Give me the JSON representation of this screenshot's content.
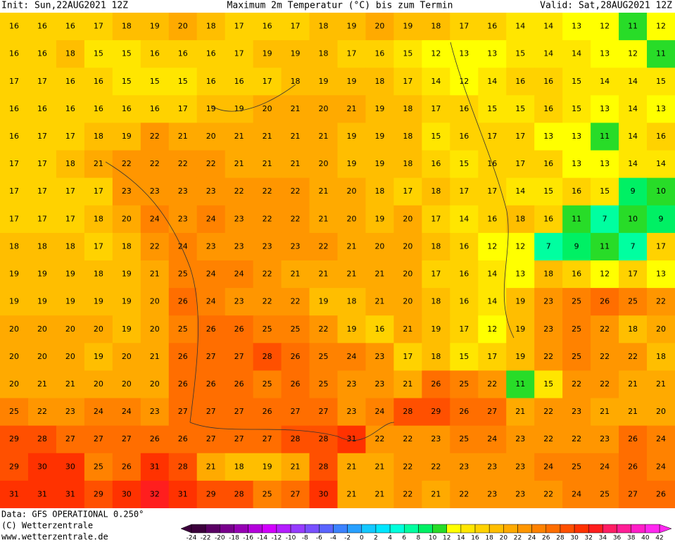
{
  "header": {
    "init": "Init: Sun,22AUG2021 12Z",
    "title": "Maximum 2m Temperatur (°C) bis zum Termin",
    "valid": "Valid: Sat,28AUG2021 12Z"
  },
  "footer": {
    "source": "Data: GFS OPERATIONAL 0.250°",
    "copyright": "(C) Wetterzentrale",
    "url": "www.wetterzentrale.de"
  },
  "grid": {
    "rows": [
      [
        16,
        16,
        16,
        17,
        18,
        19,
        20,
        18,
        17,
        16,
        17,
        18,
        19,
        20,
        19,
        18,
        17,
        16,
        14,
        14,
        13,
        12,
        11,
        12
      ],
      [
        16,
        16,
        18,
        15,
        15,
        16,
        16,
        16,
        17,
        19,
        19,
        18,
        17,
        16,
        15,
        12,
        13,
        13,
        15,
        14,
        14,
        13,
        12,
        11
      ],
      [
        17,
        17,
        16,
        16,
        15,
        15,
        15,
        16,
        16,
        17,
        18,
        19,
        19,
        18,
        17,
        14,
        12,
        14,
        16,
        16,
        15,
        14,
        14,
        15
      ],
      [
        16,
        16,
        16,
        16,
        16,
        16,
        17,
        19,
        19,
        20,
        21,
        20,
        21,
        19,
        18,
        17,
        16,
        15,
        15,
        16,
        15,
        13,
        14,
        13
      ],
      [
        16,
        17,
        17,
        18,
        19,
        22,
        21,
        20,
        21,
        21,
        21,
        21,
        19,
        19,
        18,
        15,
        16,
        17,
        17,
        13,
        13,
        11,
        14,
        16
      ],
      [
        17,
        17,
        18,
        21,
        22,
        22,
        22,
        22,
        21,
        21,
        21,
        20,
        19,
        19,
        18,
        16,
        15,
        16,
        17,
        16,
        13,
        13,
        14,
        14
      ],
      [
        17,
        17,
        17,
        17,
        23,
        23,
        23,
        23,
        22,
        22,
        22,
        21,
        20,
        18,
        17,
        18,
        17,
        17,
        14,
        15,
        16,
        15,
        9,
        10
      ],
      [
        17,
        17,
        17,
        18,
        20,
        24,
        23,
        24,
        23,
        22,
        22,
        21,
        20,
        19,
        20,
        17,
        14,
        16,
        18,
        16,
        11,
        7,
        10,
        9
      ],
      [
        18,
        18,
        18,
        17,
        18,
        22,
        24,
        23,
        23,
        23,
        23,
        22,
        21,
        20,
        20,
        18,
        16,
        12,
        12,
        7,
        9,
        11,
        7,
        17
      ],
      [
        19,
        19,
        19,
        18,
        19,
        21,
        25,
        24,
        24,
        22,
        21,
        21,
        21,
        21,
        20,
        17,
        16,
        14,
        13,
        18,
        16,
        12,
        17,
        13
      ],
      [
        19,
        19,
        19,
        19,
        19,
        20,
        26,
        24,
        23,
        22,
        22,
        19,
        18,
        21,
        20,
        18,
        16,
        14,
        19,
        23,
        25,
        26,
        25,
        22
      ],
      [
        20,
        20,
        20,
        20,
        19,
        20,
        25,
        26,
        26,
        25,
        25,
        22,
        19,
        16,
        21,
        19,
        17,
        12,
        19,
        23,
        25,
        22,
        18,
        20
      ],
      [
        20,
        20,
        20,
        19,
        20,
        21,
        26,
        27,
        27,
        28,
        26,
        25,
        24,
        23,
        17,
        18,
        15,
        17,
        19,
        22,
        25,
        22,
        22,
        18
      ],
      [
        20,
        21,
        21,
        20,
        20,
        20,
        26,
        26,
        26,
        25,
        26,
        25,
        23,
        23,
        21,
        26,
        25,
        22,
        11,
        15,
        22,
        22,
        21,
        21
      ],
      [
        25,
        22,
        23,
        24,
        24,
        23,
        27,
        27,
        27,
        26,
        27,
        27,
        23,
        24,
        28,
        29,
        26,
        27,
        21,
        22,
        23,
        21,
        21,
        20
      ],
      [
        29,
        28,
        27,
        27,
        27,
        26,
        26,
        27,
        27,
        27,
        28,
        28,
        31,
        22,
        22,
        23,
        25,
        24,
        23,
        22,
        22,
        23,
        26,
        24
      ],
      [
        29,
        30,
        30,
        25,
        26,
        31,
        28,
        21,
        18,
        19,
        21,
        28,
        21,
        21,
        22,
        22,
        23,
        23,
        23,
        24,
        25,
        24,
        26,
        24
      ],
      [
        31,
        31,
        31,
        29,
        30,
        32,
        31,
        29,
        28,
        25,
        27,
        30,
        21,
        21,
        22,
        21,
        22,
        23,
        23,
        22,
        24,
        25,
        27,
        26
      ]
    ]
  },
  "colorbar": {
    "ticks": [
      -24,
      -22,
      -20,
      -18,
      -16,
      -14,
      -12,
      -10,
      -8,
      -6,
      -4,
      -2,
      0,
      2,
      4,
      6,
      8,
      10,
      12,
      14,
      16,
      18,
      20,
      22,
      24,
      26,
      28,
      30,
      32,
      34,
      36,
      38,
      40,
      42
    ],
    "colors": [
      "#3c003c",
      "#5a0064",
      "#78008c",
      "#9600b4",
      "#b400dc",
      "#d200ff",
      "#b41eff",
      "#963cff",
      "#7850ff",
      "#5a64ff",
      "#3c82ff",
      "#28a0ff",
      "#14c8ff",
      "#00e6ff",
      "#00ffdc",
      "#00ffa0",
      "#00f064",
      "#28dc28",
      "#ffff00",
      "#ffe600",
      "#ffd200",
      "#ffbe00",
      "#ffaa00",
      "#ff9600",
      "#ff8200",
      "#ff6e00",
      "#ff5000",
      "#ff3200",
      "#ff1e1e",
      "#ff1e64",
      "#ff1e96",
      "#ff1ec8",
      "#ff28f0"
    ]
  }
}
